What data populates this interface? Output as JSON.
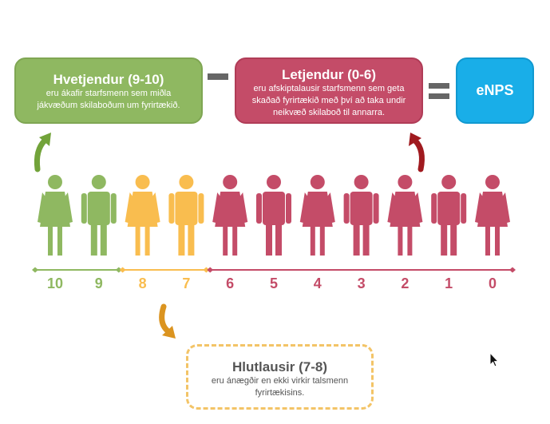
{
  "promoters": {
    "title": "Hvetjendur (9-10)",
    "description_line1": "eru ákafir starfsmenn sem miðla",
    "description_line2": "jákvæðum skilaboðum um fyrirtækið."
  },
  "detractors": {
    "title": "Letjendur (0-6)",
    "description_line1": "eru afskiptalausir starfsmenn sem geta",
    "description_line2": "skaðað fyrirtækið með því að taka undir",
    "description_line3": "neikvæð skilaboð til annarra."
  },
  "result": {
    "title": "eNPS"
  },
  "passives": {
    "title": "Hlutlausir (7-8)",
    "description_line1": "eru ánægðir en ekki virkir talsmenn",
    "description_line2": "fyrirtækisins."
  },
  "scale": {
    "numbers": [
      "10",
      "9",
      "8",
      "7",
      "6",
      "5",
      "4",
      "3",
      "2",
      "1",
      "0"
    ],
    "groups": [
      "promoter",
      "promoter",
      "passive",
      "passive",
      "detractor",
      "detractor",
      "detractor",
      "detractor",
      "detractor",
      "detractor",
      "detractor"
    ],
    "figure_types": [
      "female",
      "male",
      "female",
      "male",
      "female",
      "male",
      "female",
      "male",
      "female",
      "male",
      "female"
    ]
  },
  "colors": {
    "promoter": "#8fb861",
    "passive": "#f9bd4f",
    "detractor": "#c44c68",
    "enps": "#19aee8",
    "operator": "#666666",
    "arrow_promoter": "#72a33a",
    "arrow_detractor": "#a01a1f",
    "arrow_passive": "#db9420"
  },
  "icons": {
    "arrow_promoter": "curved-arrow-up-icon",
    "arrow_detractor": "curved-arrow-up-icon",
    "arrow_passive": "curved-arrow-down-icon",
    "cursor": "mouse-pointer-icon"
  }
}
